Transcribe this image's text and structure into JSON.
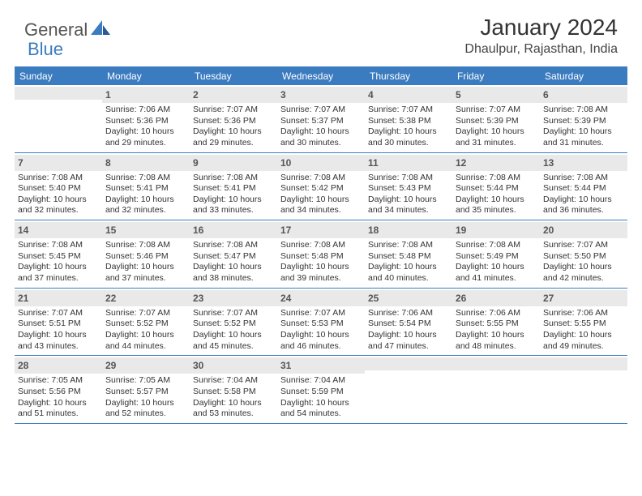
{
  "logo": {
    "part1": "General",
    "part2": "Blue"
  },
  "title": "January 2024",
  "location": "Dhaulpur, Rajasthan, India",
  "colors": {
    "header_bg": "#3b7bbf",
    "header_text": "#ffffff",
    "daynum_bg": "#e9e9e9",
    "border": "#3b7bbf",
    "text": "#333333"
  },
  "day_headers": [
    "Sunday",
    "Monday",
    "Tuesday",
    "Wednesday",
    "Thursday",
    "Friday",
    "Saturday"
  ],
  "weeks": [
    [
      {
        "blank": true
      },
      {
        "num": "1",
        "sunrise": "7:06 AM",
        "sunset": "5:36 PM",
        "daylight": "10 hours and 29 minutes."
      },
      {
        "num": "2",
        "sunrise": "7:07 AM",
        "sunset": "5:36 PM",
        "daylight": "10 hours and 29 minutes."
      },
      {
        "num": "3",
        "sunrise": "7:07 AM",
        "sunset": "5:37 PM",
        "daylight": "10 hours and 30 minutes."
      },
      {
        "num": "4",
        "sunrise": "7:07 AM",
        "sunset": "5:38 PM",
        "daylight": "10 hours and 30 minutes."
      },
      {
        "num": "5",
        "sunrise": "7:07 AM",
        "sunset": "5:39 PM",
        "daylight": "10 hours and 31 minutes."
      },
      {
        "num": "6",
        "sunrise": "7:08 AM",
        "sunset": "5:39 PM",
        "daylight": "10 hours and 31 minutes."
      }
    ],
    [
      {
        "num": "7",
        "sunrise": "7:08 AM",
        "sunset": "5:40 PM",
        "daylight": "10 hours and 32 minutes."
      },
      {
        "num": "8",
        "sunrise": "7:08 AM",
        "sunset": "5:41 PM",
        "daylight": "10 hours and 32 minutes."
      },
      {
        "num": "9",
        "sunrise": "7:08 AM",
        "sunset": "5:41 PM",
        "daylight": "10 hours and 33 minutes."
      },
      {
        "num": "10",
        "sunrise": "7:08 AM",
        "sunset": "5:42 PM",
        "daylight": "10 hours and 34 minutes."
      },
      {
        "num": "11",
        "sunrise": "7:08 AM",
        "sunset": "5:43 PM",
        "daylight": "10 hours and 34 minutes."
      },
      {
        "num": "12",
        "sunrise": "7:08 AM",
        "sunset": "5:44 PM",
        "daylight": "10 hours and 35 minutes."
      },
      {
        "num": "13",
        "sunrise": "7:08 AM",
        "sunset": "5:44 PM",
        "daylight": "10 hours and 36 minutes."
      }
    ],
    [
      {
        "num": "14",
        "sunrise": "7:08 AM",
        "sunset": "5:45 PM",
        "daylight": "10 hours and 37 minutes."
      },
      {
        "num": "15",
        "sunrise": "7:08 AM",
        "sunset": "5:46 PM",
        "daylight": "10 hours and 37 minutes."
      },
      {
        "num": "16",
        "sunrise": "7:08 AM",
        "sunset": "5:47 PM",
        "daylight": "10 hours and 38 minutes."
      },
      {
        "num": "17",
        "sunrise": "7:08 AM",
        "sunset": "5:48 PM",
        "daylight": "10 hours and 39 minutes."
      },
      {
        "num": "18",
        "sunrise": "7:08 AM",
        "sunset": "5:48 PM",
        "daylight": "10 hours and 40 minutes."
      },
      {
        "num": "19",
        "sunrise": "7:08 AM",
        "sunset": "5:49 PM",
        "daylight": "10 hours and 41 minutes."
      },
      {
        "num": "20",
        "sunrise": "7:07 AM",
        "sunset": "5:50 PM",
        "daylight": "10 hours and 42 minutes."
      }
    ],
    [
      {
        "num": "21",
        "sunrise": "7:07 AM",
        "sunset": "5:51 PM",
        "daylight": "10 hours and 43 minutes."
      },
      {
        "num": "22",
        "sunrise": "7:07 AM",
        "sunset": "5:52 PM",
        "daylight": "10 hours and 44 minutes."
      },
      {
        "num": "23",
        "sunrise": "7:07 AM",
        "sunset": "5:52 PM",
        "daylight": "10 hours and 45 minutes."
      },
      {
        "num": "24",
        "sunrise": "7:07 AM",
        "sunset": "5:53 PM",
        "daylight": "10 hours and 46 minutes."
      },
      {
        "num": "25",
        "sunrise": "7:06 AM",
        "sunset": "5:54 PM",
        "daylight": "10 hours and 47 minutes."
      },
      {
        "num": "26",
        "sunrise": "7:06 AM",
        "sunset": "5:55 PM",
        "daylight": "10 hours and 48 minutes."
      },
      {
        "num": "27",
        "sunrise": "7:06 AM",
        "sunset": "5:55 PM",
        "daylight": "10 hours and 49 minutes."
      }
    ],
    [
      {
        "num": "28",
        "sunrise": "7:05 AM",
        "sunset": "5:56 PM",
        "daylight": "10 hours and 51 minutes."
      },
      {
        "num": "29",
        "sunrise": "7:05 AM",
        "sunset": "5:57 PM",
        "daylight": "10 hours and 52 minutes."
      },
      {
        "num": "30",
        "sunrise": "7:04 AM",
        "sunset": "5:58 PM",
        "daylight": "10 hours and 53 minutes."
      },
      {
        "num": "31",
        "sunrise": "7:04 AM",
        "sunset": "5:59 PM",
        "daylight": "10 hours and 54 minutes."
      },
      {
        "blank": true
      },
      {
        "blank": true
      },
      {
        "blank": true
      }
    ]
  ],
  "labels": {
    "sunrise": "Sunrise:",
    "sunset": "Sunset:",
    "daylight": "Daylight:"
  }
}
